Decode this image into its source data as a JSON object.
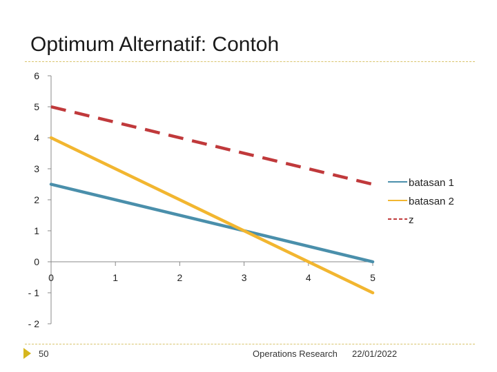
{
  "slide": {
    "title": "Optimum Alternatif: Contoh"
  },
  "footer": {
    "page_number": "50",
    "organization": "Operations Research",
    "date": "22/01/2022"
  },
  "chart_data": {
    "type": "line",
    "title": "",
    "xlabel": "",
    "ylabel": "",
    "xlim": [
      0,
      5
    ],
    "ylim": [
      -2,
      6
    ],
    "x_ticks": [
      0,
      1,
      2,
      3,
      4,
      5
    ],
    "y_ticks": [
      6,
      5,
      4,
      3,
      2,
      1,
      0,
      -1,
      -2
    ],
    "grid": false,
    "legend_position": "right",
    "series": [
      {
        "name": "batasan 1",
        "color": "#4a8fab",
        "dash": "solid",
        "x": [
          0,
          5
        ],
        "y": [
          2.5,
          0
        ]
      },
      {
        "name": "batasan 2",
        "color": "#f2b630",
        "dash": "solid",
        "x": [
          0,
          5
        ],
        "y": [
          4,
          -1
        ]
      },
      {
        "name": "z",
        "color": "#c0393b",
        "dash": "dashed",
        "x": [
          0,
          5
        ],
        "y": [
          5,
          2.5
        ]
      }
    ]
  }
}
